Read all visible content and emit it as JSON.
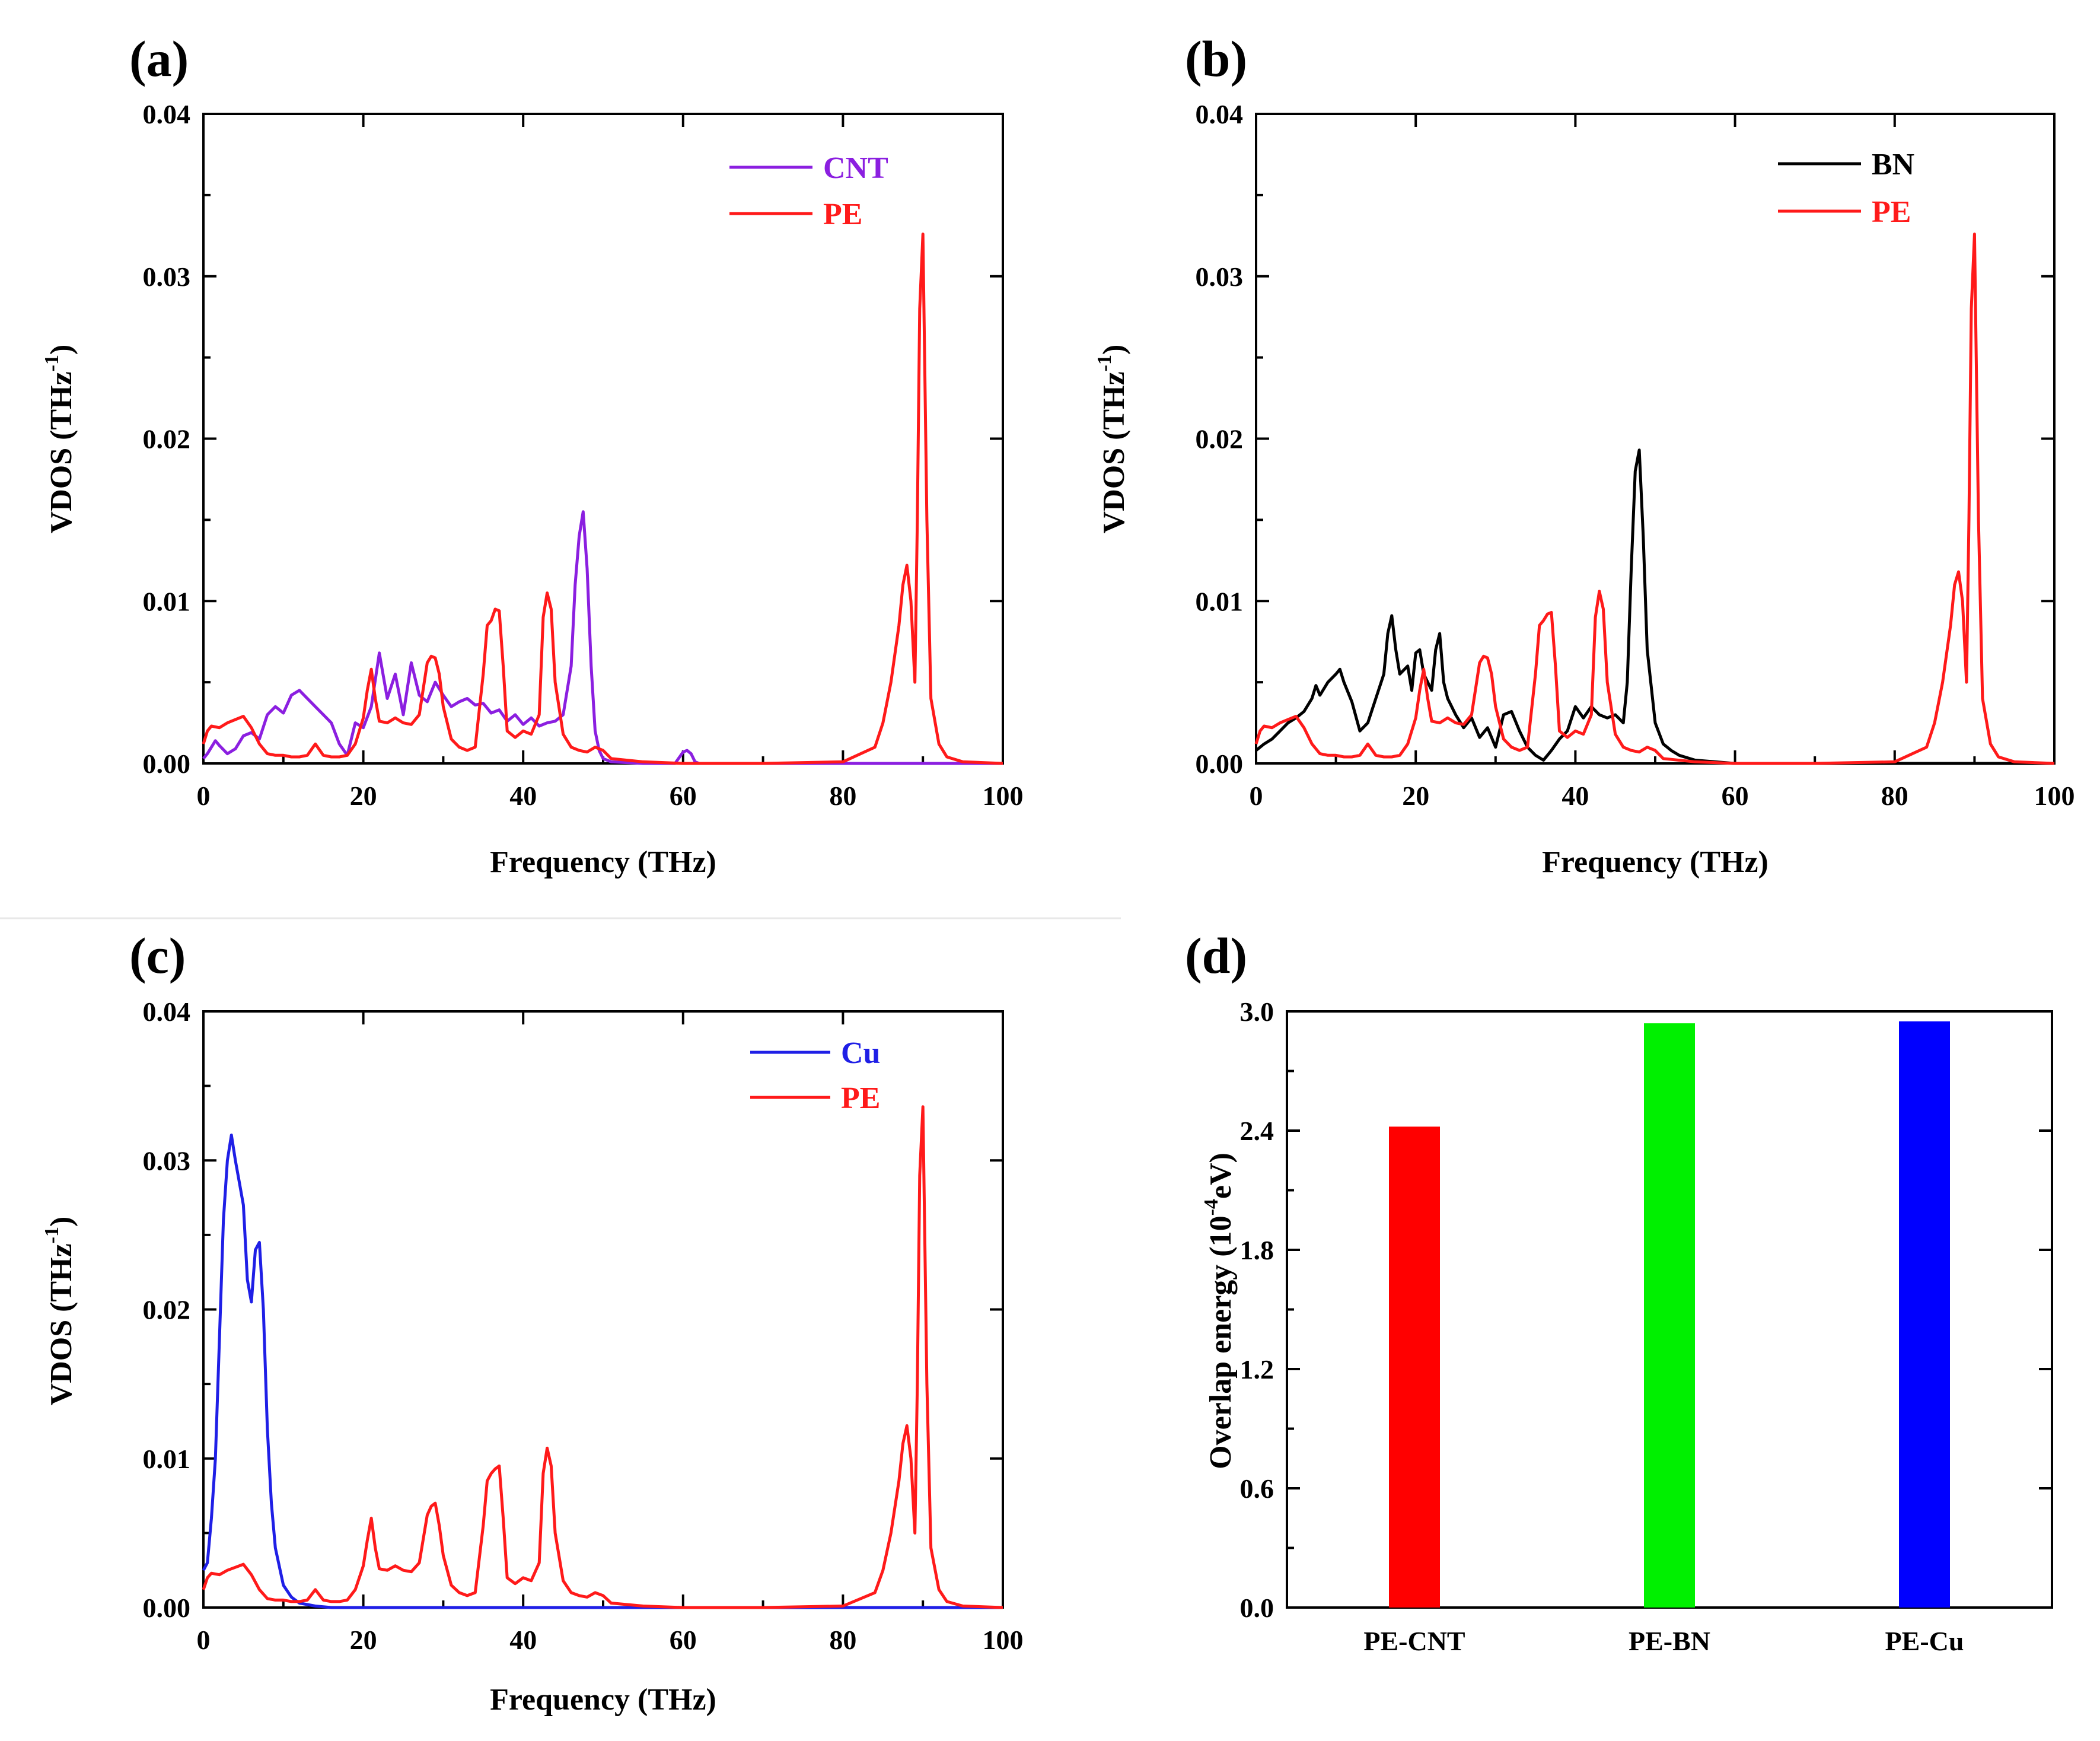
{
  "figure": {
    "colors": {
      "CNT": "#8B1FE0",
      "PE": "#FF1A1A",
      "BN": "#000000",
      "Cu": "#1F1FE6",
      "bar_PE_CNT": "#FF0000",
      "bar_PE_BN": "#00F000",
      "bar_PE_Cu": "#0000FF"
    }
  },
  "chart_data": [
    {
      "panel": "(a)",
      "type": "line",
      "xlabel": "Frequency (THz)",
      "ylabel_main": "VDOS (THz",
      "ylabel_sup": "-1",
      "ylabel_end": ")",
      "xlim": [
        0,
        100
      ],
      "ylim": [
        0,
        0.04
      ],
      "xticks": [
        "0",
        "20",
        "40",
        "60",
        "80",
        "100"
      ],
      "yticks": [
        "0.00",
        "0.01",
        "0.02",
        "0.03",
        "0.04"
      ],
      "series": [
        {
          "name": "CNT",
          "color": "#8B1FE0",
          "x": [
            0,
            0.5,
            1,
            1.5,
            2,
            3,
            4,
            5,
            6,
            7,
            8,
            9,
            10,
            11,
            12,
            13,
            14,
            15,
            16,
            17,
            18,
            19,
            20,
            21,
            22,
            23,
            24,
            25,
            26,
            27,
            28,
            29,
            30,
            31,
            32,
            33,
            34,
            35,
            36,
            37,
            38,
            39,
            40,
            41,
            42,
            43,
            44,
            45,
            46,
            46.5,
            47,
            47.5,
            48,
            48.5,
            49,
            49.5,
            50,
            51,
            55,
            59,
            60,
            60.5,
            61,
            61.5,
            62,
            63,
            70,
            80,
            90,
            100
          ],
          "y": [
            0.0003,
            0.0006,
            0.001,
            0.0014,
            0.0011,
            0.0006,
            0.0009,
            0.0017,
            0.0019,
            0.0015,
            0.003,
            0.0035,
            0.0031,
            0.0042,
            0.0045,
            0.004,
            0.0035,
            0.003,
            0.0025,
            0.0012,
            0.0005,
            0.0025,
            0.0022,
            0.0035,
            0.0068,
            0.004,
            0.0055,
            0.003,
            0.0062,
            0.0042,
            0.0038,
            0.005,
            0.0042,
            0.0035,
            0.0038,
            0.004,
            0.0036,
            0.0037,
            0.0031,
            0.0033,
            0.0026,
            0.003,
            0.0024,
            0.0028,
            0.0023,
            0.0025,
            0.0026,
            0.003,
            0.006,
            0.011,
            0.014,
            0.0155,
            0.012,
            0.006,
            0.002,
            0.0008,
            0.0003,
            0.0001,
            0.0,
            0.0,
            0.0007,
            0.0008,
            0.0006,
            0.0001,
            0.0,
            0.0,
            0.0,
            0.0,
            0.0,
            0.0
          ]
        },
        {
          "name": "PE",
          "color": "#FF1A1A",
          "x": [
            0,
            0.5,
            1,
            2,
            3,
            4,
            5,
            6,
            7,
            8,
            9,
            10,
            11,
            12,
            13,
            14,
            15,
            16,
            17,
            18,
            19,
            20,
            20.5,
            21,
            21.5,
            22,
            23,
            24,
            25,
            26,
            27,
            28,
            28.5,
            29,
            29.5,
            30,
            31,
            32,
            33,
            34,
            35,
            35.5,
            36,
            36.5,
            37,
            37.5,
            38,
            39,
            40,
            41,
            42,
            42.5,
            43,
            43.5,
            44,
            45,
            46,
            47,
            48,
            49,
            50,
            51,
            55,
            60,
            70,
            80,
            84,
            85,
            86,
            87,
            87.5,
            88,
            88.5,
            89,
            89.3,
            89.6,
            90,
            90.5,
            91,
            92,
            93,
            95,
            100
          ],
          "y": [
            0.0012,
            0.002,
            0.0023,
            0.0022,
            0.0025,
            0.0027,
            0.0029,
            0.0022,
            0.0012,
            0.0006,
            0.0005,
            0.0005,
            0.0004,
            0.0004,
            0.0005,
            0.0012,
            0.0005,
            0.0004,
            0.0004,
            0.0005,
            0.0012,
            0.0028,
            0.0045,
            0.0058,
            0.004,
            0.0026,
            0.0025,
            0.0028,
            0.0025,
            0.0024,
            0.003,
            0.0062,
            0.0066,
            0.0065,
            0.0055,
            0.0035,
            0.0015,
            0.001,
            0.0008,
            0.001,
            0.0055,
            0.0085,
            0.0088,
            0.0095,
            0.0094,
            0.006,
            0.002,
            0.0016,
            0.002,
            0.0018,
            0.003,
            0.009,
            0.0105,
            0.0095,
            0.005,
            0.0018,
            0.001,
            0.0008,
            0.0007,
            0.001,
            0.0008,
            0.0003,
            0.0001,
            0.0,
            0.0,
            0.0001,
            0.001,
            0.0025,
            0.005,
            0.0085,
            0.011,
            0.0122,
            0.01,
            0.005,
            0.015,
            0.028,
            0.0326,
            0.015,
            0.004,
            0.0012,
            0.0004,
            0.0001,
            0.0
          ]
        }
      ]
    },
    {
      "panel": "(b)",
      "type": "line",
      "xlabel": "Frequency (THz)",
      "ylabel_main": "VDOS (THz",
      "ylabel_sup": "-1",
      "ylabel_end": ")",
      "xlim": [
        0,
        100
      ],
      "ylim": [
        0,
        0.04
      ],
      "xticks": [
        "0",
        "20",
        "40",
        "60",
        "80",
        "100"
      ],
      "yticks": [
        "0.00",
        "0.01",
        "0.02",
        "0.03",
        "0.04"
      ],
      "series": [
        {
          "name": "BN",
          "color": "#000000",
          "x": [
            0,
            1,
            2,
            3,
            4,
            5,
            6,
            7,
            7.5,
            8,
            9,
            10,
            10.5,
            11,
            12,
            13,
            14,
            15,
            16,
            16.5,
            17,
            17.5,
            18,
            19,
            19.5,
            20,
            20.5,
            21,
            22,
            22.5,
            23,
            23.5,
            24,
            25,
            26,
            27,
            28,
            29,
            30,
            31,
            32,
            33,
            34,
            35,
            36,
            37,
            38,
            39,
            40,
            41,
            42,
            43,
            44,
            45,
            46,
            46.5,
            47,
            47.5,
            48,
            48.5,
            49,
            50,
            51,
            52,
            53,
            55,
            60,
            70,
            80,
            90,
            100
          ],
          "y": [
            0.0008,
            0.0012,
            0.0015,
            0.002,
            0.0025,
            0.0028,
            0.0032,
            0.004,
            0.0048,
            0.0042,
            0.005,
            0.0055,
            0.0058,
            0.005,
            0.0038,
            0.002,
            0.0025,
            0.004,
            0.0055,
            0.008,
            0.0091,
            0.007,
            0.0055,
            0.006,
            0.0045,
            0.0068,
            0.007,
            0.0055,
            0.0045,
            0.007,
            0.008,
            0.005,
            0.004,
            0.003,
            0.0022,
            0.0028,
            0.0016,
            0.0022,
            0.001,
            0.003,
            0.0032,
            0.002,
            0.001,
            0.0005,
            0.0002,
            0.0008,
            0.0015,
            0.002,
            0.0035,
            0.0028,
            0.0035,
            0.003,
            0.0028,
            0.003,
            0.0025,
            0.005,
            0.012,
            0.018,
            0.0193,
            0.014,
            0.007,
            0.0025,
            0.0012,
            0.0008,
            0.0005,
            0.0002,
            0.0,
            0.0,
            0.0,
            0.0,
            0.0
          ]
        },
        {
          "name": "PE",
          "color": "#FF1A1A",
          "x": [
            0,
            0.5,
            1,
            2,
            3,
            4,
            5,
            6,
            7,
            8,
            9,
            10,
            11,
            12,
            13,
            14,
            15,
            16,
            17,
            18,
            19,
            20,
            20.5,
            21,
            21.5,
            22,
            23,
            24,
            25,
            26,
            27,
            28,
            28.5,
            29,
            29.5,
            30,
            31,
            32,
            33,
            34,
            35,
            35.5,
            36,
            36.5,
            37,
            37.5,
            38,
            39,
            40,
            41,
            42,
            42.5,
            43,
            43.5,
            44,
            45,
            46,
            47,
            48,
            49,
            50,
            51,
            55,
            60,
            70,
            80,
            84,
            85,
            86,
            87,
            87.5,
            88,
            88.5,
            89,
            89.3,
            89.6,
            90,
            90.5,
            91,
            92,
            93,
            95,
            100
          ],
          "y": [
            0.0012,
            0.002,
            0.0023,
            0.0022,
            0.0025,
            0.0027,
            0.0029,
            0.0022,
            0.0012,
            0.0006,
            0.0005,
            0.0005,
            0.0004,
            0.0004,
            0.0005,
            0.0012,
            0.0005,
            0.0004,
            0.0004,
            0.0005,
            0.0012,
            0.0028,
            0.0045,
            0.0058,
            0.004,
            0.0026,
            0.0025,
            0.0028,
            0.0025,
            0.0024,
            0.003,
            0.0062,
            0.0066,
            0.0065,
            0.0055,
            0.0035,
            0.0015,
            0.001,
            0.0008,
            0.001,
            0.0055,
            0.0085,
            0.0088,
            0.0092,
            0.0093,
            0.006,
            0.002,
            0.0016,
            0.002,
            0.0018,
            0.003,
            0.009,
            0.0106,
            0.0095,
            0.005,
            0.0018,
            0.001,
            0.0008,
            0.0007,
            0.001,
            0.0008,
            0.0003,
            0.0001,
            0.0,
            0.0,
            0.0001,
            0.001,
            0.0025,
            0.005,
            0.0085,
            0.011,
            0.0118,
            0.01,
            0.005,
            0.015,
            0.028,
            0.0326,
            0.015,
            0.004,
            0.0012,
            0.0004,
            0.0001,
            0.0
          ]
        }
      ]
    },
    {
      "panel": "(c)",
      "type": "line",
      "xlabel": "Frequency (THz)",
      "ylabel_main": "VDOS (THz",
      "ylabel_sup": "-1",
      "ylabel_end": ")",
      "xlim": [
        0,
        100
      ],
      "ylim": [
        0,
        0.04
      ],
      "xticks": [
        "0",
        "20",
        "40",
        "60",
        "80",
        "100"
      ],
      "yticks": [
        "0.00",
        "0.01",
        "0.02",
        "0.03",
        "0.04"
      ],
      "series": [
        {
          "name": "Cu",
          "color": "#1F1FE6",
          "x": [
            0,
            0.5,
            1,
            1.5,
            2,
            2.5,
            3,
            3.5,
            4,
            4.5,
            5,
            5.5,
            6,
            6.5,
            7,
            7.5,
            8,
            8.5,
            9,
            10,
            11,
            12,
            14,
            16,
            20,
            40,
            60,
            80,
            100
          ],
          "y": [
            0.0025,
            0.003,
            0.006,
            0.01,
            0.018,
            0.026,
            0.03,
            0.0317,
            0.03,
            0.0285,
            0.027,
            0.022,
            0.0205,
            0.024,
            0.0245,
            0.02,
            0.012,
            0.007,
            0.004,
            0.0015,
            0.0007,
            0.0003,
            0.0001,
            0.0,
            0.0,
            0.0,
            0.0,
            0.0,
            0.0
          ]
        },
        {
          "name": "PE",
          "color": "#FF1A1A",
          "x": [
            0,
            0.5,
            1,
            2,
            3,
            4,
            5,
            6,
            7,
            8,
            9,
            10,
            11,
            12,
            13,
            14,
            15,
            16,
            17,
            18,
            19,
            20,
            20.5,
            21,
            21.5,
            22,
            23,
            24,
            25,
            26,
            27,
            28,
            28.5,
            29,
            29.5,
            30,
            31,
            32,
            33,
            34,
            35,
            35.5,
            36,
            36.5,
            37,
            37.5,
            38,
            39,
            40,
            41,
            42,
            42.5,
            43,
            43.5,
            44,
            45,
            46,
            47,
            48,
            49,
            50,
            51,
            55,
            60,
            70,
            80,
            84,
            85,
            86,
            87,
            87.5,
            88,
            88.5,
            89,
            89.3,
            89.6,
            90,
            90.5,
            91,
            92,
            93,
            95,
            100
          ],
          "y": [
            0.0012,
            0.002,
            0.0023,
            0.0022,
            0.0025,
            0.0027,
            0.0029,
            0.0022,
            0.0012,
            0.0006,
            0.0005,
            0.0005,
            0.0004,
            0.0004,
            0.0005,
            0.0012,
            0.0005,
            0.0004,
            0.0004,
            0.0005,
            0.0012,
            0.0028,
            0.0045,
            0.006,
            0.004,
            0.0026,
            0.0025,
            0.0028,
            0.0025,
            0.0024,
            0.003,
            0.0062,
            0.0068,
            0.007,
            0.0055,
            0.0035,
            0.0015,
            0.001,
            0.0008,
            0.001,
            0.0055,
            0.0085,
            0.009,
            0.0093,
            0.0095,
            0.006,
            0.002,
            0.0016,
            0.002,
            0.0018,
            0.003,
            0.009,
            0.0107,
            0.0095,
            0.005,
            0.0018,
            0.001,
            0.0008,
            0.0007,
            0.001,
            0.0008,
            0.0003,
            0.0001,
            0.0,
            0.0,
            0.0001,
            0.001,
            0.0025,
            0.005,
            0.0085,
            0.011,
            0.0122,
            0.01,
            0.005,
            0.015,
            0.029,
            0.0336,
            0.015,
            0.004,
            0.0012,
            0.0004,
            0.0001,
            0.0
          ]
        }
      ]
    },
    {
      "panel": "(d)",
      "type": "bar",
      "xlabel": "",
      "ylabel_main": "Overlap energy (10",
      "ylabel_sup": "-4",
      "ylabel_end": "eV)",
      "ylim": [
        0,
        3.0
      ],
      "yticks": [
        "0.0",
        "0.6",
        "1.2",
        "1.8",
        "2.4",
        "3.0"
      ],
      "categories": [
        "PE-CNT",
        "PE-BN",
        "PE-Cu"
      ],
      "values": [
        2.42,
        2.94,
        2.95
      ],
      "colors": [
        "#FF0000",
        "#00F000",
        "#0000FF"
      ]
    }
  ]
}
